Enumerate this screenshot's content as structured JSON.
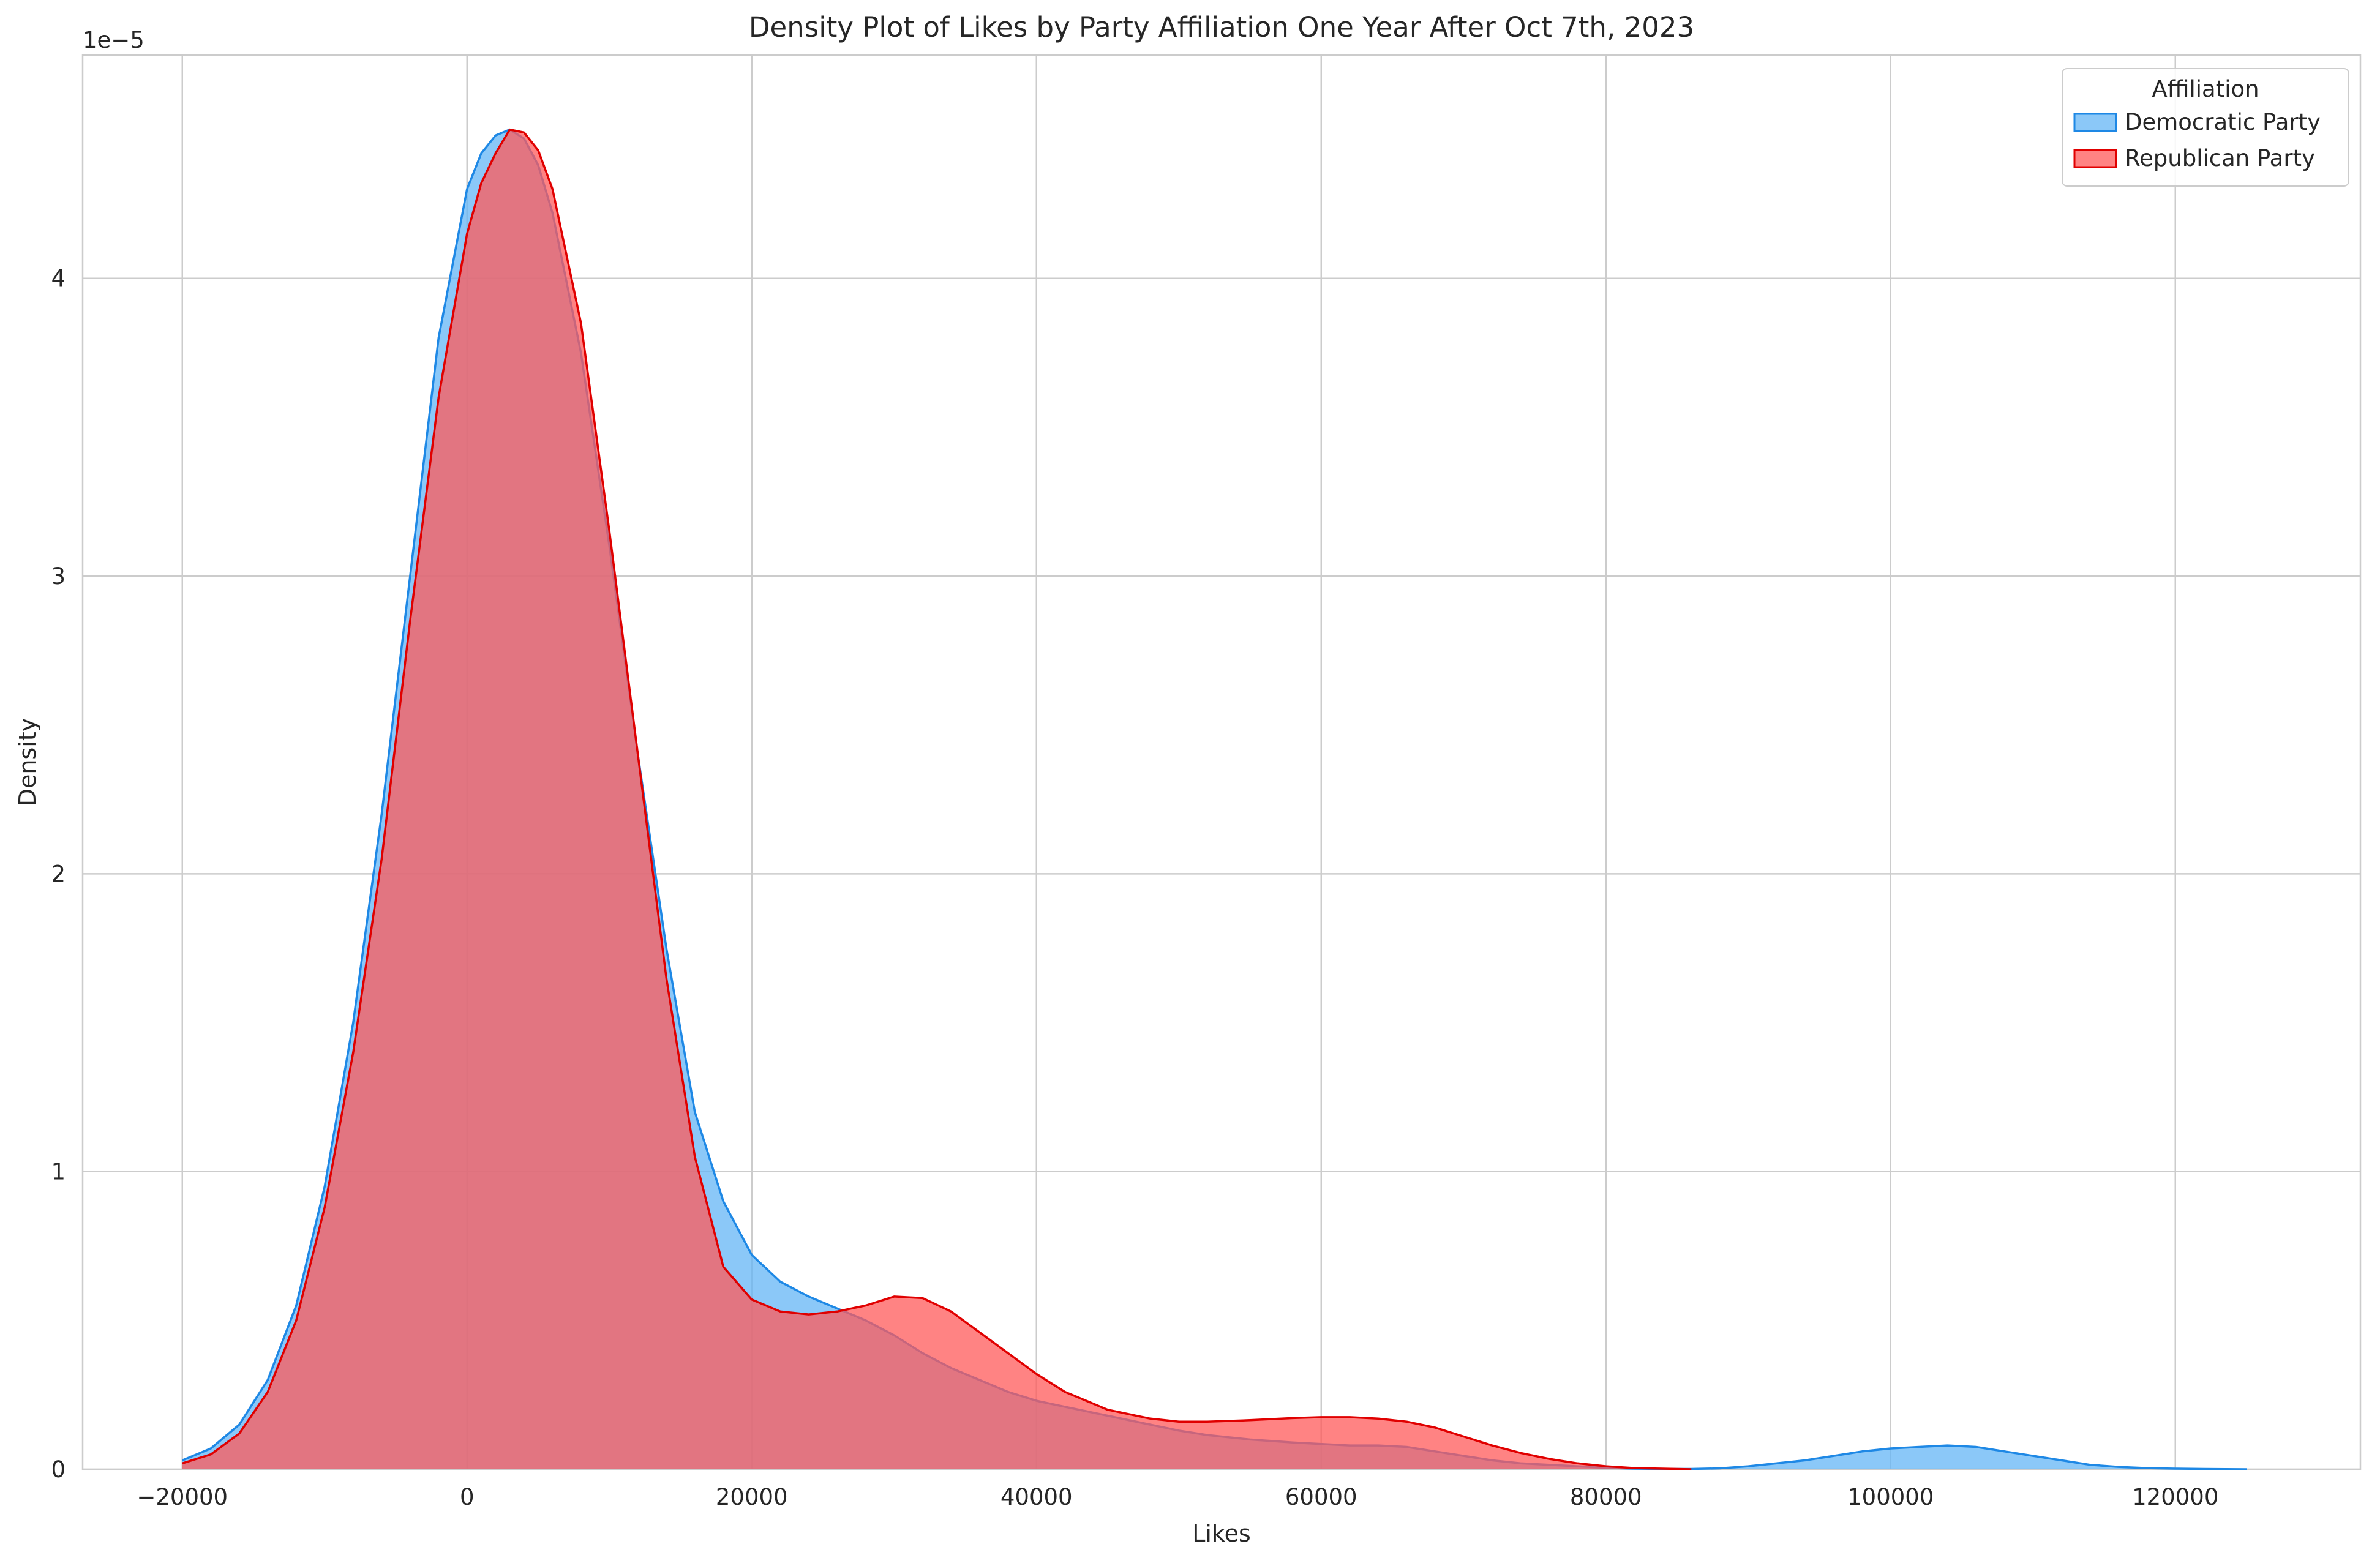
{
  "chart_data": {
    "type": "area",
    "title": "Density Plot of Likes by Party Affiliation One Year After Oct 7th, 2023",
    "xlabel": "Likes",
    "ylabel": "Density",
    "y_scale_offset": "1e−5",
    "xlim": [
      -27000,
      133000
    ],
    "ylim": [
      0,
      4.75
    ],
    "x_ticks": [
      -20000,
      0,
      20000,
      40000,
      60000,
      80000,
      100000,
      120000
    ],
    "x_tick_labels": [
      "−20000",
      "0",
      "20000",
      "40000",
      "60000",
      "80000",
      "100000",
      "120000"
    ],
    "y_ticks": [
      0,
      1,
      2,
      3,
      4
    ],
    "y_tick_labels": [
      "0",
      "1",
      "2",
      "3",
      "4"
    ],
    "grid": true,
    "legend": {
      "title": "Affiliation",
      "placement": "top-right"
    },
    "series": [
      {
        "name": "Democratic Party",
        "color": "#1e88e5",
        "fill": "#64b5f6",
        "fill_opacity": 0.75,
        "x": [
          -20000,
          -18000,
          -16000,
          -14000,
          -12000,
          -10000,
          -8000,
          -6000,
          -4000,
          -2000,
          0,
          1000,
          2000,
          3000,
          4000,
          5000,
          6000,
          8000,
          10000,
          12000,
          14000,
          16000,
          18000,
          20000,
          22000,
          24000,
          26000,
          28000,
          30000,
          32000,
          34000,
          36000,
          38000,
          40000,
          42000,
          45000,
          48000,
          50000,
          52000,
          55000,
          58000,
          60000,
          62000,
          64000,
          66000,
          68000,
          70000,
          72000,
          74000,
          76000,
          78000,
          80000,
          82000,
          84000,
          86000,
          88000,
          90000,
          92000,
          94000,
          96000,
          98000,
          100000,
          102000,
          104000,
          106000,
          108000,
          110000,
          112000,
          114000,
          116000,
          118000,
          120000,
          122000,
          125000
        ],
        "y": [
          0.03,
          0.07,
          0.15,
          0.3,
          0.55,
          0.95,
          1.5,
          2.2,
          3.0,
          3.8,
          4.3,
          4.42,
          4.48,
          4.5,
          4.47,
          4.38,
          4.22,
          3.75,
          3.1,
          2.4,
          1.75,
          1.2,
          0.9,
          0.72,
          0.63,
          0.58,
          0.54,
          0.5,
          0.45,
          0.39,
          0.34,
          0.3,
          0.26,
          0.23,
          0.21,
          0.18,
          0.15,
          0.13,
          0.115,
          0.1,
          0.09,
          0.085,
          0.08,
          0.08,
          0.075,
          0.06,
          0.045,
          0.03,
          0.02,
          0.015,
          0.01,
          0.005,
          0.002,
          0.001,
          0.001,
          0.003,
          0.01,
          0.02,
          0.03,
          0.045,
          0.06,
          0.07,
          0.075,
          0.08,
          0.075,
          0.06,
          0.045,
          0.03,
          0.015,
          0.008,
          0.004,
          0.002,
          0.001,
          0.0
        ]
      },
      {
        "name": "Republican Party",
        "color": "#e00000",
        "fill": "#ff5a5a",
        "fill_opacity": 0.75,
        "x": [
          -20000,
          -18000,
          -16000,
          -14000,
          -12000,
          -10000,
          -8000,
          -6000,
          -4000,
          -2000,
          0,
          1000,
          2000,
          3000,
          4000,
          5000,
          6000,
          8000,
          10000,
          12000,
          14000,
          16000,
          18000,
          20000,
          22000,
          24000,
          26000,
          28000,
          30000,
          32000,
          34000,
          36000,
          38000,
          40000,
          42000,
          45000,
          48000,
          50000,
          52000,
          55000,
          58000,
          60000,
          62000,
          64000,
          66000,
          68000,
          70000,
          72000,
          74000,
          76000,
          78000,
          80000,
          82000,
          84000,
          86000
        ],
        "y": [
          0.02,
          0.05,
          0.12,
          0.26,
          0.5,
          0.88,
          1.4,
          2.05,
          2.85,
          3.6,
          4.15,
          4.32,
          4.42,
          4.5,
          4.49,
          4.43,
          4.3,
          3.85,
          3.15,
          2.4,
          1.65,
          1.05,
          0.68,
          0.57,
          0.53,
          0.52,
          0.53,
          0.55,
          0.58,
          0.575,
          0.53,
          0.46,
          0.39,
          0.32,
          0.26,
          0.2,
          0.17,
          0.16,
          0.16,
          0.165,
          0.172,
          0.175,
          0.175,
          0.17,
          0.16,
          0.14,
          0.11,
          0.08,
          0.055,
          0.035,
          0.02,
          0.01,
          0.004,
          0.002,
          0.0
        ]
      }
    ]
  }
}
